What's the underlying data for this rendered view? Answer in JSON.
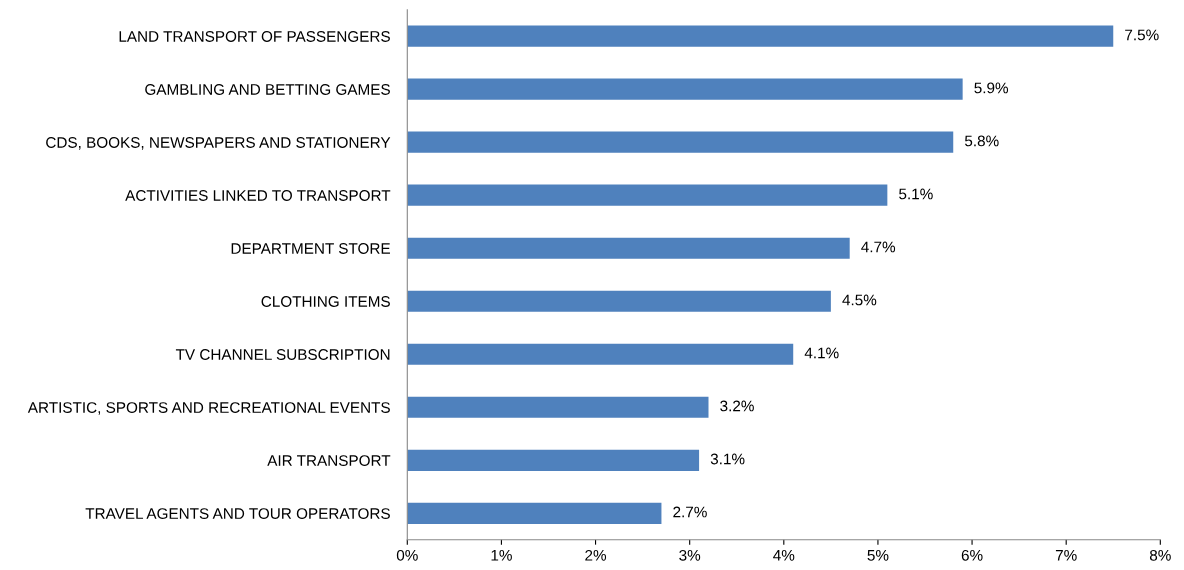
{
  "chart_data": {
    "type": "bar",
    "orientation": "horizontal",
    "categories": [
      "LAND TRANSPORT OF PASSENGERS",
      "GAMBLING AND BETTING GAMES",
      "CDS, BOOKS, NEWSPAPERS AND STATIONERY",
      "ACTIVITIES LINKED TO TRANSPORT",
      "DEPARTMENT STORE",
      "CLOTHING ITEMS",
      "TV CHANNEL SUBSCRIPTION",
      "ARTISTIC, SPORTS AND RECREATIONAL EVENTS",
      "AIR TRANSPORT",
      "TRAVEL AGENTS AND TOUR OPERATORS"
    ],
    "values": [
      7.5,
      5.9,
      5.8,
      5.1,
      4.7,
      4.5,
      4.1,
      3.2,
      3.1,
      2.7
    ],
    "value_labels": [
      "7.5%",
      "5.9%",
      "5.8%",
      "5.1%",
      "4.7%",
      "4.5%",
      "4.1%",
      "3.2%",
      "3.1%",
      "2.7%"
    ],
    "color": "#4f81bd",
    "xlim": [
      0,
      8
    ],
    "xticks": [
      {
        "value": 0,
        "label": "0%"
      },
      {
        "value": 1,
        "label": "1%"
      },
      {
        "value": 2,
        "label": "2%"
      },
      {
        "value": 3,
        "label": "3%"
      },
      {
        "value": 4,
        "label": "4%"
      },
      {
        "value": 5,
        "label": "5%"
      },
      {
        "value": 6,
        "label": "6%"
      },
      {
        "value": 7,
        "label": "7%"
      },
      {
        "value": 8,
        "label": "8%"
      }
    ],
    "grid": false,
    "legend": false
  }
}
